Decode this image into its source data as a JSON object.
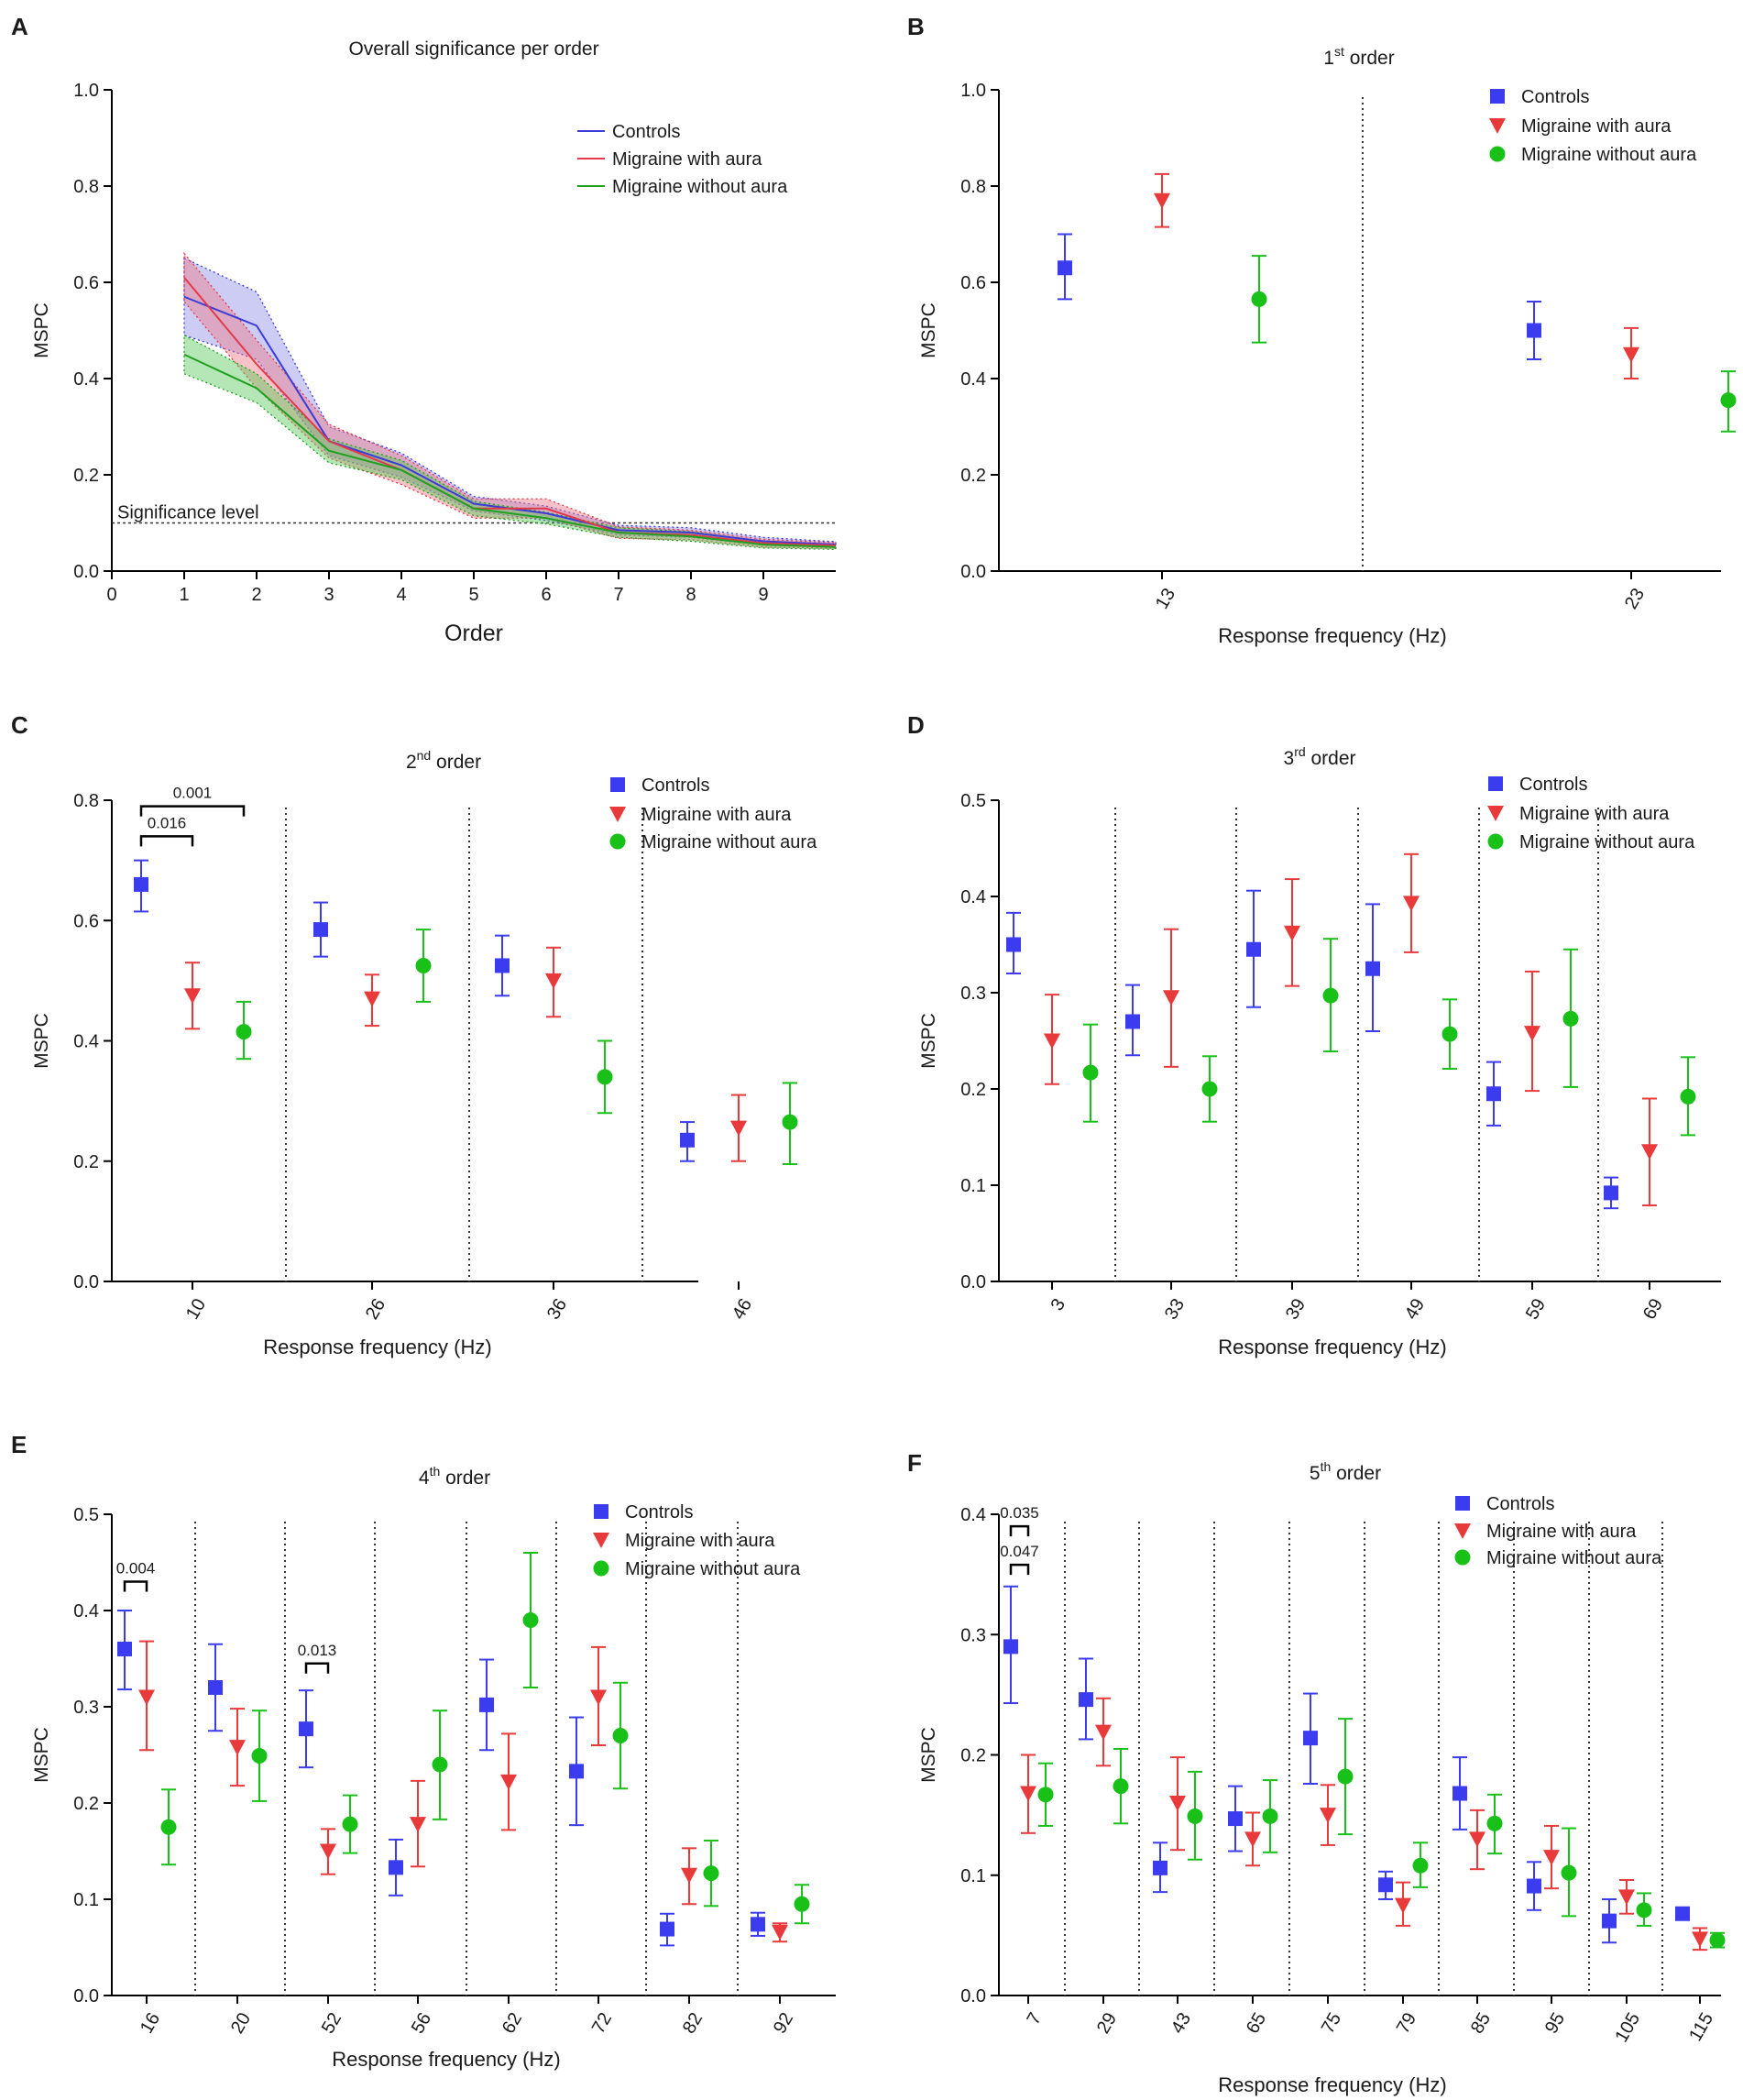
{
  "chart_data": [
    {
      "panel": "A",
      "type": "line",
      "title": "Overall significance per order",
      "xlabel": "Order",
      "ylabel": "MSPC",
      "xlim": [
        0,
        10
      ],
      "ylim": [
        0,
        1.0
      ],
      "xticks": [
        "0",
        "1",
        "2",
        "3",
        "4",
        "5",
        "6",
        "7",
        "8",
        "9"
      ],
      "yticks": [
        "0.0",
        "0.2",
        "0.4",
        "0.6",
        "0.8",
        "1.0"
      ],
      "significance_level": 0.1,
      "significance_label": "Significance level",
      "x": [
        1,
        2,
        3,
        4,
        5,
        6,
        7,
        8,
        9,
        10
      ],
      "series": [
        {
          "name": "Controls",
          "color": "#3b3bd6",
          "fill": "#8f8fe8",
          "values": [
            0.57,
            0.51,
            0.27,
            0.22,
            0.14,
            0.12,
            0.085,
            0.08,
            0.062,
            0.055
          ],
          "band": [
            0.08,
            0.07,
            0.03,
            0.025,
            0.015,
            0.015,
            0.01,
            0.01,
            0.008,
            0.006
          ]
        },
        {
          "name": "Migraine with aura",
          "color": "#e23a4a",
          "fill": "#f07a84",
          "values": [
            0.61,
            0.43,
            0.27,
            0.21,
            0.13,
            0.13,
            0.08,
            0.075,
            0.058,
            0.053
          ],
          "band": [
            0.05,
            0.05,
            0.035,
            0.03,
            0.02,
            0.02,
            0.012,
            0.01,
            0.008,
            0.006
          ]
        },
        {
          "name": "Migraine without aura",
          "color": "#20a020",
          "fill": "#5cc85c",
          "values": [
            0.45,
            0.38,
            0.25,
            0.21,
            0.13,
            0.11,
            0.08,
            0.072,
            0.055,
            0.05
          ],
          "band": [
            0.04,
            0.03,
            0.025,
            0.02,
            0.015,
            0.012,
            0.01,
            0.01,
            0.007,
            0.005
          ]
        }
      ]
    },
    {
      "panel": "B",
      "type": "scatter",
      "title": "1",
      "title_sup": "st",
      "title_rest": " order",
      "xlabel": "Response frequency (Hz)",
      "ylabel": "MSPC",
      "ylim": [
        0,
        1.0
      ],
      "yticks": [
        "0.0",
        "0.2",
        "0.4",
        "0.6",
        "0.8",
        "1.0"
      ],
      "categories": [
        "13",
        "23"
      ],
      "series": [
        {
          "name": "Controls",
          "values": [
            0.63,
            0.5
          ],
          "err_low": [
            0.565,
            0.44
          ],
          "err_high": [
            0.7,
            0.56
          ]
        },
        {
          "name": "Migraine with aura",
          "values": [
            0.77,
            0.45
          ],
          "err_low": [
            0.715,
            0.4
          ],
          "err_high": [
            0.825,
            0.505
          ]
        },
        {
          "name": "Migraine without aura",
          "values": [
            0.565,
            0.355
          ],
          "err_low": [
            0.475,
            0.29
          ],
          "err_high": [
            0.655,
            0.415
          ]
        }
      ],
      "brackets": []
    },
    {
      "panel": "C",
      "type": "scatter",
      "title": "2",
      "title_sup": "nd",
      "title_rest": " order",
      "xlabel": "Response frequency (Hz)",
      "ylabel": "MSPC",
      "ylim": [
        0,
        0.8
      ],
      "yticks": [
        "0.0",
        "0.2",
        "0.4",
        "0.6",
        "0.8"
      ],
      "categories": [
        "10",
        "26",
        "36",
        "46"
      ],
      "series": [
        {
          "name": "Controls",
          "values": [
            0.66,
            0.585,
            0.525,
            0.235
          ],
          "err_low": [
            0.615,
            0.54,
            0.475,
            0.2
          ],
          "err_high": [
            0.7,
            0.63,
            0.575,
            0.265
          ]
        },
        {
          "name": "Migraine with aura",
          "values": [
            0.475,
            0.47,
            0.5,
            0.255
          ],
          "err_low": [
            0.42,
            0.425,
            0.44,
            0.2
          ],
          "err_high": [
            0.53,
            0.51,
            0.555,
            0.31
          ]
        },
        {
          "name": "Migraine without aura",
          "values": [
            0.415,
            0.525,
            0.34,
            0.265
          ],
          "err_low": [
            0.37,
            0.465,
            0.28,
            0.195
          ],
          "err_high": [
            0.465,
            0.585,
            0.4,
            0.33
          ]
        }
      ],
      "brackets": [
        {
          "cat": 0,
          "from": 0,
          "to": 1,
          "y": 0.74,
          "label": "0.016"
        },
        {
          "cat": 0,
          "from": 0,
          "to": 2,
          "y": 0.79,
          "label": "0.001"
        }
      ]
    },
    {
      "panel": "D",
      "type": "scatter",
      "title": "3",
      "title_sup": "rd",
      "title_rest": " order",
      "xlabel": "Response frequency (Hz)",
      "ylabel": "MSPC",
      "ylim": [
        0,
        0.5
      ],
      "yticks": [
        "0.0",
        "0.1",
        "0.2",
        "0.3",
        "0.4",
        "0.5"
      ],
      "categories": [
        "3",
        "33",
        "39",
        "49",
        "59",
        "69"
      ],
      "series": [
        {
          "name": "Controls",
          "values": [
            0.35,
            0.27,
            0.345,
            0.325,
            0.195,
            0.092
          ],
          "err_low": [
            0.32,
            0.235,
            0.285,
            0.26,
            0.162,
            0.076
          ],
          "err_high": [
            0.383,
            0.308,
            0.406,
            0.392,
            0.228,
            0.108
          ]
        },
        {
          "name": "Migraine with aura",
          "values": [
            0.25,
            0.295,
            0.362,
            0.393,
            0.258,
            0.135
          ],
          "err_low": [
            0.205,
            0.223,
            0.307,
            0.342,
            0.198,
            0.079
          ],
          "err_high": [
            0.298,
            0.366,
            0.418,
            0.444,
            0.322,
            0.19
          ]
        },
        {
          "name": "Migraine without aura",
          "values": [
            0.217,
            0.2,
            0.297,
            0.257,
            0.273,
            0.192
          ],
          "err_low": [
            0.166,
            0.166,
            0.239,
            0.221,
            0.202,
            0.152
          ],
          "err_high": [
            0.267,
            0.234,
            0.356,
            0.293,
            0.345,
            0.233
          ]
        }
      ],
      "brackets": []
    },
    {
      "panel": "E",
      "type": "scatter",
      "title": "4",
      "title_sup": "th",
      "title_rest": " order",
      "xlabel": "Response frequency (Hz)",
      "ylabel": "MSPC",
      "ylim": [
        0,
        0.5
      ],
      "yticks": [
        "0.0",
        "0.1",
        "0.2",
        "0.3",
        "0.4",
        "0.5"
      ],
      "categories": [
        "16",
        "20",
        "52",
        "56",
        "62",
        "72",
        "82",
        "92"
      ],
      "series": [
        {
          "name": "Controls",
          "values": [
            0.36,
            0.32,
            0.277,
            0.133,
            0.302,
            0.233,
            0.069,
            0.074
          ],
          "err_low": [
            0.318,
            0.275,
            0.237,
            0.104,
            0.255,
            0.177,
            0.052,
            0.062
          ],
          "err_high": [
            0.4,
            0.365,
            0.317,
            0.162,
            0.349,
            0.289,
            0.085,
            0.086
          ]
        },
        {
          "name": "Migraine with aura",
          "values": [
            0.31,
            0.258,
            0.15,
            0.178,
            0.222,
            0.31,
            0.125,
            0.066
          ],
          "err_low": [
            0.255,
            0.218,
            0.126,
            0.134,
            0.172,
            0.26,
            0.095,
            0.056
          ],
          "err_high": [
            0.368,
            0.298,
            0.173,
            0.223,
            0.272,
            0.362,
            0.153,
            0.075
          ]
        },
        {
          "name": "Migraine without aura",
          "values": [
            0.175,
            0.249,
            0.178,
            0.24,
            0.39,
            0.27,
            0.127,
            0.095
          ],
          "err_low": [
            0.136,
            0.202,
            0.148,
            0.183,
            0.32,
            0.215,
            0.093,
            0.075
          ],
          "err_high": [
            0.214,
            0.296,
            0.208,
            0.296,
            0.46,
            0.325,
            0.161,
            0.115
          ]
        }
      ],
      "brackets": [
        {
          "cat": 0,
          "from": 0,
          "to": 1,
          "y": 0.43,
          "label": "0.004"
        },
        {
          "cat": 2,
          "from": 0,
          "to": 1,
          "y": 0.345,
          "label": "0.013"
        }
      ]
    },
    {
      "panel": "F",
      "type": "scatter",
      "title": "5",
      "title_sup": "th",
      "title_rest": " order",
      "xlabel": "Response frequency (Hz)",
      "ylabel": "MSPC",
      "ylim": [
        0,
        0.4
      ],
      "yticks": [
        "0.0",
        "0.1",
        "0.2",
        "0.3",
        "0.4"
      ],
      "categories": [
        "7",
        "29",
        "43",
        "65",
        "75",
        "79",
        "85",
        "95",
        "105",
        "115"
      ],
      "series": [
        {
          "name": "Controls",
          "values": [
            0.29,
            0.246,
            0.106,
            0.147,
            0.214,
            0.092,
            0.168,
            0.091,
            0.062,
            0.068
          ],
          "err_low": [
            0.243,
            0.213,
            0.086,
            0.12,
            0.176,
            0.08,
            0.138,
            0.071,
            0.044,
            0.068
          ],
          "err_high": [
            0.34,
            0.28,
            0.127,
            0.174,
            0.251,
            0.103,
            0.198,
            0.111,
            0.08,
            0.068
          ]
        },
        {
          "name": "Migraine with aura",
          "values": [
            0.168,
            0.219,
            0.16,
            0.13,
            0.15,
            0.075,
            0.13,
            0.115,
            0.082,
            0.047
          ],
          "err_low": [
            0.135,
            0.191,
            0.121,
            0.108,
            0.125,
            0.058,
            0.105,
            0.089,
            0.068,
            0.038
          ],
          "err_high": [
            0.2,
            0.247,
            0.198,
            0.152,
            0.175,
            0.094,
            0.154,
            0.141,
            0.096,
            0.056
          ]
        },
        {
          "name": "Migraine without aura",
          "values": [
            0.167,
            0.174,
            0.149,
            0.149,
            0.182,
            0.108,
            0.143,
            0.102,
            0.071,
            0.046
          ],
          "err_low": [
            0.141,
            0.143,
            0.113,
            0.119,
            0.134,
            0.09,
            0.118,
            0.066,
            0.058,
            0.04
          ],
          "err_high": [
            0.193,
            0.205,
            0.186,
            0.179,
            0.23,
            0.127,
            0.167,
            0.139,
            0.085,
            0.052
          ]
        }
      ],
      "brackets": [
        {
          "cat": 0,
          "from": 0,
          "to": 1,
          "y": 0.358,
          "label": "0.047"
        },
        {
          "cat": 0,
          "from": 0,
          "to": 1,
          "y": 0.39,
          "label": "0.035"
        }
      ]
    }
  ],
  "legend": [
    "Controls",
    "Migraine with aura",
    "Migraine without aura"
  ],
  "colors": {
    "controls": "#3b3bf0",
    "with_aura": "#e83a3a",
    "without_aura": "#18c018",
    "controls_line": "#3b3bd6",
    "with_aura_line": "#e23a4a",
    "without_aura_line": "#20a020"
  }
}
